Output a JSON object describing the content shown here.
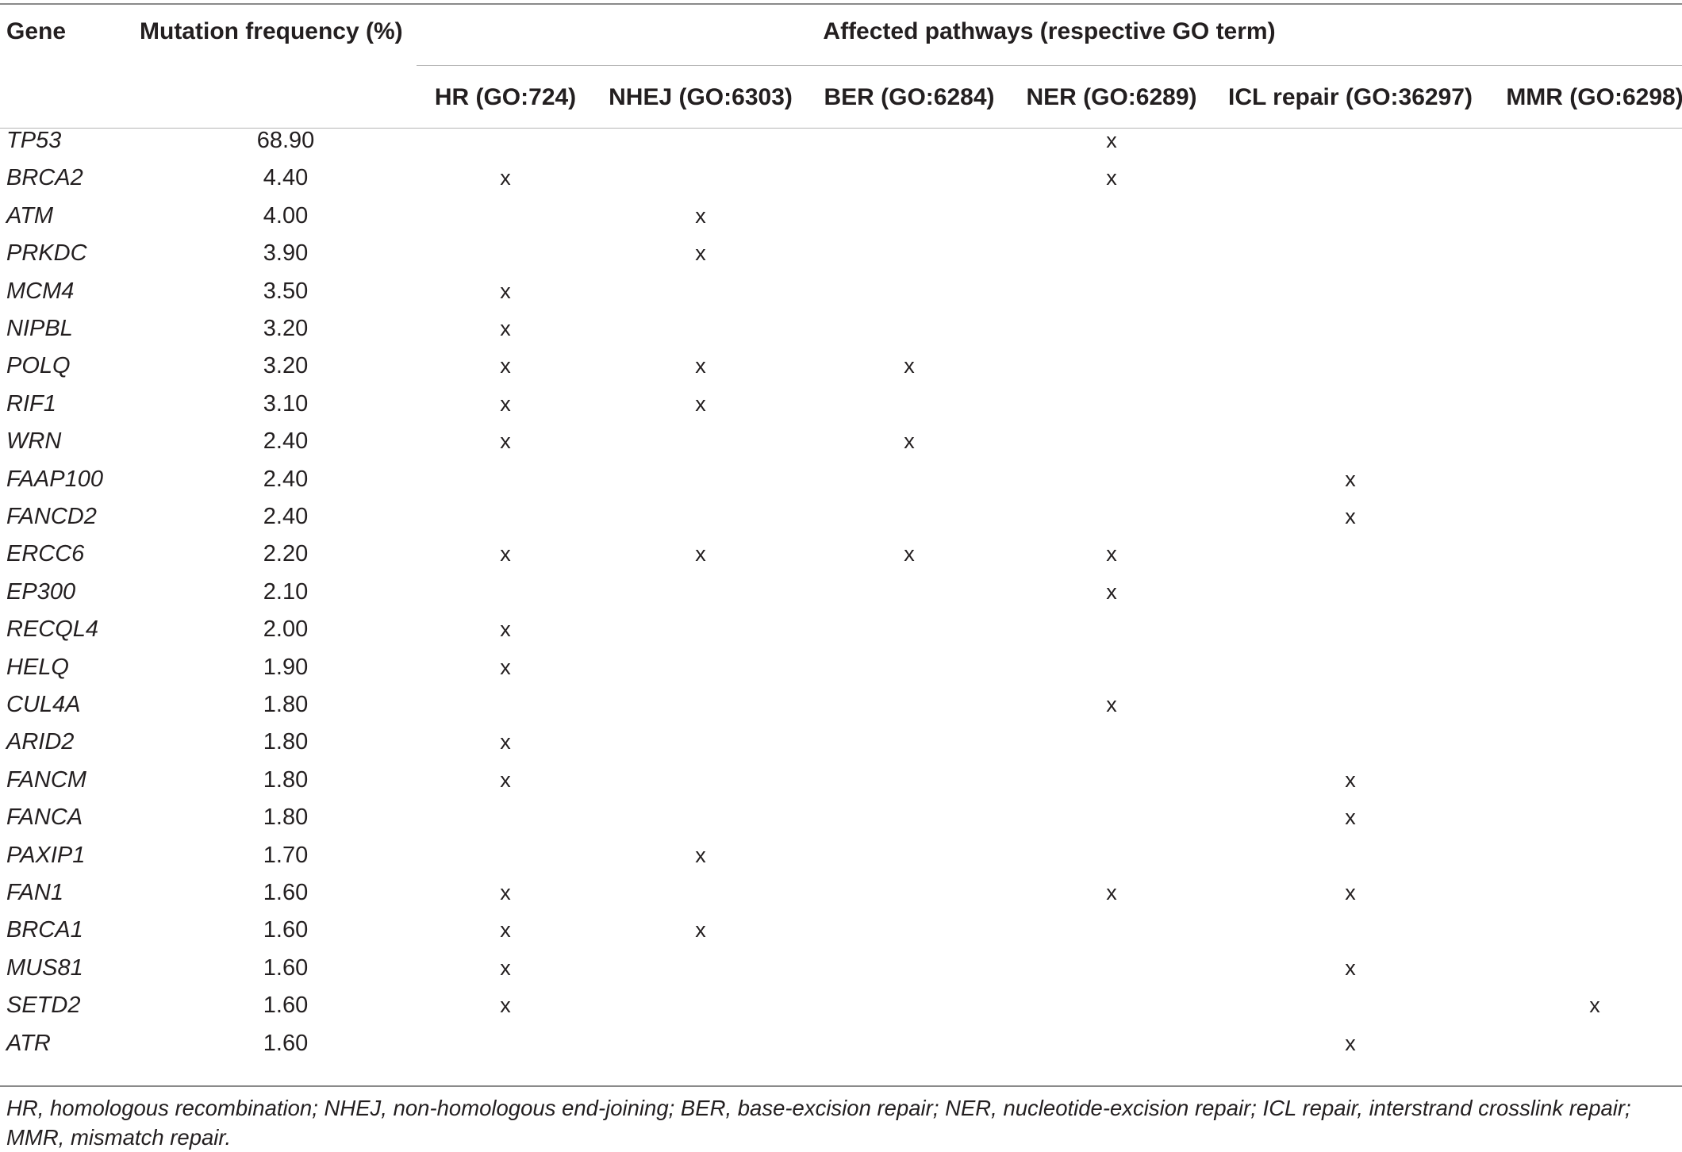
{
  "table": {
    "headers": {
      "gene": "Gene",
      "frequency": "Mutation frequency (%)",
      "pathways_group": "Affected pathways (respective GO term)",
      "pathways": [
        "HR (GO:724)",
        "NHEJ (GO:6303)",
        "BER (GO:6284)",
        "NER (GO:6289)",
        "ICL repair (GO:36297)",
        "MMR (GO:6298)"
      ]
    },
    "mark_symbol": "x",
    "rows": [
      {
        "gene": "TP53",
        "freq": "68.90",
        "marks": [
          false,
          false,
          false,
          true,
          false,
          false
        ]
      },
      {
        "gene": "BRCA2",
        "freq": "4.40",
        "marks": [
          true,
          false,
          false,
          true,
          false,
          false
        ]
      },
      {
        "gene": "ATM",
        "freq": "4.00",
        "marks": [
          false,
          true,
          false,
          false,
          false,
          false
        ]
      },
      {
        "gene": "PRKDC",
        "freq": "3.90",
        "marks": [
          false,
          true,
          false,
          false,
          false,
          false
        ]
      },
      {
        "gene": "MCM4",
        "freq": "3.50",
        "marks": [
          true,
          false,
          false,
          false,
          false,
          false
        ]
      },
      {
        "gene": "NIPBL",
        "freq": "3.20",
        "marks": [
          true,
          false,
          false,
          false,
          false,
          false
        ]
      },
      {
        "gene": "POLQ",
        "freq": "3.20",
        "marks": [
          true,
          true,
          true,
          false,
          false,
          false
        ]
      },
      {
        "gene": "RIF1",
        "freq": "3.10",
        "marks": [
          true,
          true,
          false,
          false,
          false,
          false
        ]
      },
      {
        "gene": "WRN",
        "freq": "2.40",
        "marks": [
          true,
          false,
          true,
          false,
          false,
          false
        ]
      },
      {
        "gene": "FAAP100",
        "freq": "2.40",
        "marks": [
          false,
          false,
          false,
          false,
          true,
          false
        ]
      },
      {
        "gene": "FANCD2",
        "freq": "2.40",
        "marks": [
          false,
          false,
          false,
          false,
          true,
          false
        ]
      },
      {
        "gene": "ERCC6",
        "freq": "2.20",
        "marks": [
          true,
          true,
          true,
          true,
          false,
          false
        ]
      },
      {
        "gene": "EP300",
        "freq": "2.10",
        "marks": [
          false,
          false,
          false,
          true,
          false,
          false
        ]
      },
      {
        "gene": "RECQL4",
        "freq": "2.00",
        "marks": [
          true,
          false,
          false,
          false,
          false,
          false
        ]
      },
      {
        "gene": "HELQ",
        "freq": "1.90",
        "marks": [
          true,
          false,
          false,
          false,
          false,
          false
        ]
      },
      {
        "gene": "CUL4A",
        "freq": "1.80",
        "marks": [
          false,
          false,
          false,
          true,
          false,
          false
        ]
      },
      {
        "gene": "ARID2",
        "freq": "1.80",
        "marks": [
          true,
          false,
          false,
          false,
          false,
          false
        ]
      },
      {
        "gene": "FANCM",
        "freq": "1.80",
        "marks": [
          true,
          false,
          false,
          false,
          true,
          false
        ]
      },
      {
        "gene": "FANCA",
        "freq": "1.80",
        "marks": [
          false,
          false,
          false,
          false,
          true,
          false
        ]
      },
      {
        "gene": "PAXIP1",
        "freq": "1.70",
        "marks": [
          false,
          true,
          false,
          false,
          false,
          false
        ]
      },
      {
        "gene": "FAN1",
        "freq": "1.60",
        "marks": [
          true,
          false,
          false,
          true,
          true,
          false
        ]
      },
      {
        "gene": "BRCA1",
        "freq": "1.60",
        "marks": [
          true,
          true,
          false,
          false,
          false,
          false
        ]
      },
      {
        "gene": "MUS81",
        "freq": "1.60",
        "marks": [
          true,
          false,
          false,
          false,
          true,
          false
        ]
      },
      {
        "gene": "SETD2",
        "freq": "1.60",
        "marks": [
          true,
          false,
          false,
          false,
          false,
          true
        ]
      },
      {
        "gene": "ATR",
        "freq": "1.60",
        "marks": [
          false,
          false,
          false,
          false,
          true,
          false
        ]
      }
    ]
  },
  "footnote": "HR, homologous recombination; NHEJ, non-homologous end-joining; BER, base-excision repair; NER, nucleotide-excision repair; ICL repair, interstrand crosslink repair; MMR, mismatch repair."
}
